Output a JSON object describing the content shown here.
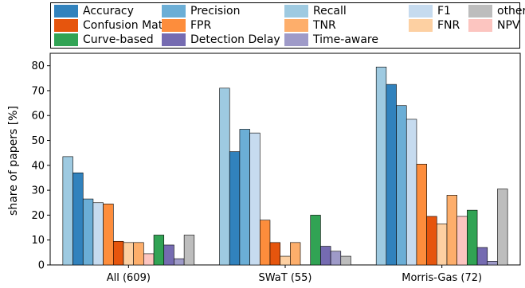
{
  "chart_data": {
    "type": "bar",
    "categories": [
      "All (609)",
      "SWaT (55)",
      "Morris-Gas (72)"
    ],
    "ylabel": "share of papers [%]",
    "xlabel": "",
    "ylim": [
      0,
      85
    ],
    "yticks": [
      0,
      10,
      20,
      30,
      40,
      50,
      60,
      70,
      80
    ],
    "grid": false,
    "legend_placement": "top",
    "series": [
      {
        "name": "Recall",
        "color": "#9ecae1",
        "values": [
          43.5,
          71,
          79.5
        ]
      },
      {
        "name": "Accuracy",
        "color": "#3182bd",
        "values": [
          37,
          45.5,
          72.5
        ]
      },
      {
        "name": "Precision",
        "color": "#6baed6",
        "values": [
          26.5,
          54.5,
          64
        ]
      },
      {
        "name": "F1",
        "color": "#c6dbef",
        "values": [
          25,
          53,
          58.5
        ]
      },
      {
        "name": "FPR",
        "color": "#fd8d3c",
        "values": [
          24.5,
          18,
          40.5
        ]
      },
      {
        "name": "Confusion Matrix",
        "color": "#e6550d",
        "values": [
          9.5,
          9,
          19.5
        ]
      },
      {
        "name": "FNR",
        "color": "#fdd0a2",
        "values": [
          9,
          3.5,
          16.5
        ]
      },
      {
        "name": "TNR",
        "color": "#fdae6b",
        "values": [
          9,
          9,
          28
        ]
      },
      {
        "name": "NPV",
        "color": "#fcc5c0",
        "values": [
          4.5,
          0,
          19.5
        ]
      },
      {
        "name": "Curve-based",
        "color": "#31a354",
        "values": [
          12,
          20,
          22
        ]
      },
      {
        "name": "Detection Delay",
        "color": "#756bb1",
        "values": [
          8,
          7.5,
          7
        ]
      },
      {
        "name": "Time-aware",
        "color": "#9e9ac8",
        "values": [
          2.5,
          5.5,
          1.5
        ]
      },
      {
        "name": "others",
        "color": "#bdbdbd",
        "values": [
          12,
          3.5,
          30.5
        ]
      }
    ],
    "legend": [
      {
        "name": "Accuracy",
        "color": "#3182bd"
      },
      {
        "name": "Precision",
        "color": "#6baed6"
      },
      {
        "name": "Recall",
        "color": "#9ecae1"
      },
      {
        "name": "F1",
        "color": "#c6dbef"
      },
      {
        "name": "others",
        "color": "#bdbdbd"
      },
      {
        "name": "Confusion Matrix",
        "color": "#e6550d"
      },
      {
        "name": "FPR",
        "color": "#fd8d3c"
      },
      {
        "name": "TNR",
        "color": "#fdae6b"
      },
      {
        "name": "FNR",
        "color": "#fdd0a2"
      },
      {
        "name": "NPV",
        "color": "#fcc5c0"
      },
      {
        "name": "Curve-based",
        "color": "#31a354"
      },
      {
        "name": "Detection Delay",
        "color": "#756bb1"
      },
      {
        "name": "Time-aware",
        "color": "#9e9ac8"
      }
    ]
  }
}
